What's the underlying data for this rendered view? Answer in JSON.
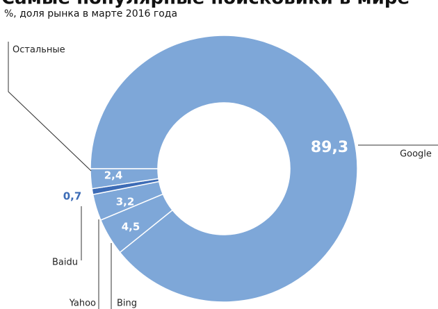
{
  "chart_data": {
    "type": "donut",
    "title": "Самые популярные поисковики в мире",
    "subtitle": "%, доля рынка в марте 2016 года",
    "categories": [
      "Google",
      "Bing",
      "Yahoo",
      "Baidu",
      "Остальные"
    ],
    "values": [
      89.3,
      4.5,
      3.2,
      0.7,
      2.4
    ],
    "value_labels": [
      "89,3",
      "4,5",
      "3,2",
      "0,7",
      "2,4"
    ],
    "colors": [
      "#7ea7d8",
      "#7ea7d8",
      "#7ea7d8",
      "#3d6cb6",
      "#7ea7d8"
    ]
  }
}
